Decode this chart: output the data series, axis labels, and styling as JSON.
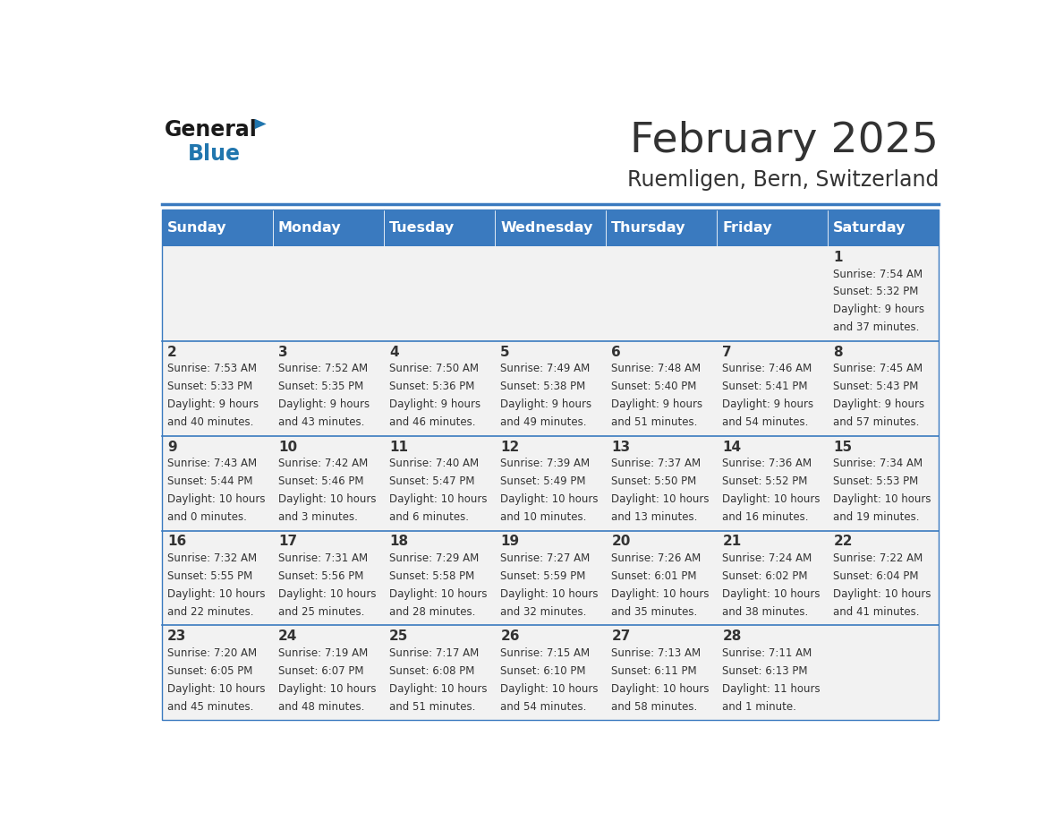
{
  "title": "February 2025",
  "subtitle": "Ruemligen, Bern, Switzerland",
  "header_color": "#3a7abf",
  "header_text_color": "#ffffff",
  "day_names": [
    "Sunday",
    "Monday",
    "Tuesday",
    "Wednesday",
    "Thursday",
    "Friday",
    "Saturday"
  ],
  "background_color": "#ffffff",
  "cell_bg_color": "#f2f2f2",
  "border_color": "#3a7abf",
  "text_color": "#333333",
  "calendar_data": [
    [
      null,
      null,
      null,
      null,
      null,
      null,
      {
        "day": 1,
        "sunrise": "7:54 AM",
        "sunset": "5:32 PM",
        "daylight": "9 hours\nand 37 minutes."
      }
    ],
    [
      {
        "day": 2,
        "sunrise": "7:53 AM",
        "sunset": "5:33 PM",
        "daylight": "9 hours\nand 40 minutes."
      },
      {
        "day": 3,
        "sunrise": "7:52 AM",
        "sunset": "5:35 PM",
        "daylight": "9 hours\nand 43 minutes."
      },
      {
        "day": 4,
        "sunrise": "7:50 AM",
        "sunset": "5:36 PM",
        "daylight": "9 hours\nand 46 minutes."
      },
      {
        "day": 5,
        "sunrise": "7:49 AM",
        "sunset": "5:38 PM",
        "daylight": "9 hours\nand 49 minutes."
      },
      {
        "day": 6,
        "sunrise": "7:48 AM",
        "sunset": "5:40 PM",
        "daylight": "9 hours\nand 51 minutes."
      },
      {
        "day": 7,
        "sunrise": "7:46 AM",
        "sunset": "5:41 PM",
        "daylight": "9 hours\nand 54 minutes."
      },
      {
        "day": 8,
        "sunrise": "7:45 AM",
        "sunset": "5:43 PM",
        "daylight": "9 hours\nand 57 minutes."
      }
    ],
    [
      {
        "day": 9,
        "sunrise": "7:43 AM",
        "sunset": "5:44 PM",
        "daylight": "10 hours\nand 0 minutes."
      },
      {
        "day": 10,
        "sunrise": "7:42 AM",
        "sunset": "5:46 PM",
        "daylight": "10 hours\nand 3 minutes."
      },
      {
        "day": 11,
        "sunrise": "7:40 AM",
        "sunset": "5:47 PM",
        "daylight": "10 hours\nand 6 minutes."
      },
      {
        "day": 12,
        "sunrise": "7:39 AM",
        "sunset": "5:49 PM",
        "daylight": "10 hours\nand 10 minutes."
      },
      {
        "day": 13,
        "sunrise": "7:37 AM",
        "sunset": "5:50 PM",
        "daylight": "10 hours\nand 13 minutes."
      },
      {
        "day": 14,
        "sunrise": "7:36 AM",
        "sunset": "5:52 PM",
        "daylight": "10 hours\nand 16 minutes."
      },
      {
        "day": 15,
        "sunrise": "7:34 AM",
        "sunset": "5:53 PM",
        "daylight": "10 hours\nand 19 minutes."
      }
    ],
    [
      {
        "day": 16,
        "sunrise": "7:32 AM",
        "sunset": "5:55 PM",
        "daylight": "10 hours\nand 22 minutes."
      },
      {
        "day": 17,
        "sunrise": "7:31 AM",
        "sunset": "5:56 PM",
        "daylight": "10 hours\nand 25 minutes."
      },
      {
        "day": 18,
        "sunrise": "7:29 AM",
        "sunset": "5:58 PM",
        "daylight": "10 hours\nand 28 minutes."
      },
      {
        "day": 19,
        "sunrise": "7:27 AM",
        "sunset": "5:59 PM",
        "daylight": "10 hours\nand 32 minutes."
      },
      {
        "day": 20,
        "sunrise": "7:26 AM",
        "sunset": "6:01 PM",
        "daylight": "10 hours\nand 35 minutes."
      },
      {
        "day": 21,
        "sunrise": "7:24 AM",
        "sunset": "6:02 PM",
        "daylight": "10 hours\nand 38 minutes."
      },
      {
        "day": 22,
        "sunrise": "7:22 AM",
        "sunset": "6:04 PM",
        "daylight": "10 hours\nand 41 minutes."
      }
    ],
    [
      {
        "day": 23,
        "sunrise": "7:20 AM",
        "sunset": "6:05 PM",
        "daylight": "10 hours\nand 45 minutes."
      },
      {
        "day": 24,
        "sunrise": "7:19 AM",
        "sunset": "6:07 PM",
        "daylight": "10 hours\nand 48 minutes."
      },
      {
        "day": 25,
        "sunrise": "7:17 AM",
        "sunset": "6:08 PM",
        "daylight": "10 hours\nand 51 minutes."
      },
      {
        "day": 26,
        "sunrise": "7:15 AM",
        "sunset": "6:10 PM",
        "daylight": "10 hours\nand 54 minutes."
      },
      {
        "day": 27,
        "sunrise": "7:13 AM",
        "sunset": "6:11 PM",
        "daylight": "10 hours\nand 58 minutes."
      },
      {
        "day": 28,
        "sunrise": "7:11 AM",
        "sunset": "6:13 PM",
        "daylight": "11 hours\nand 1 minute."
      },
      null
    ]
  ]
}
